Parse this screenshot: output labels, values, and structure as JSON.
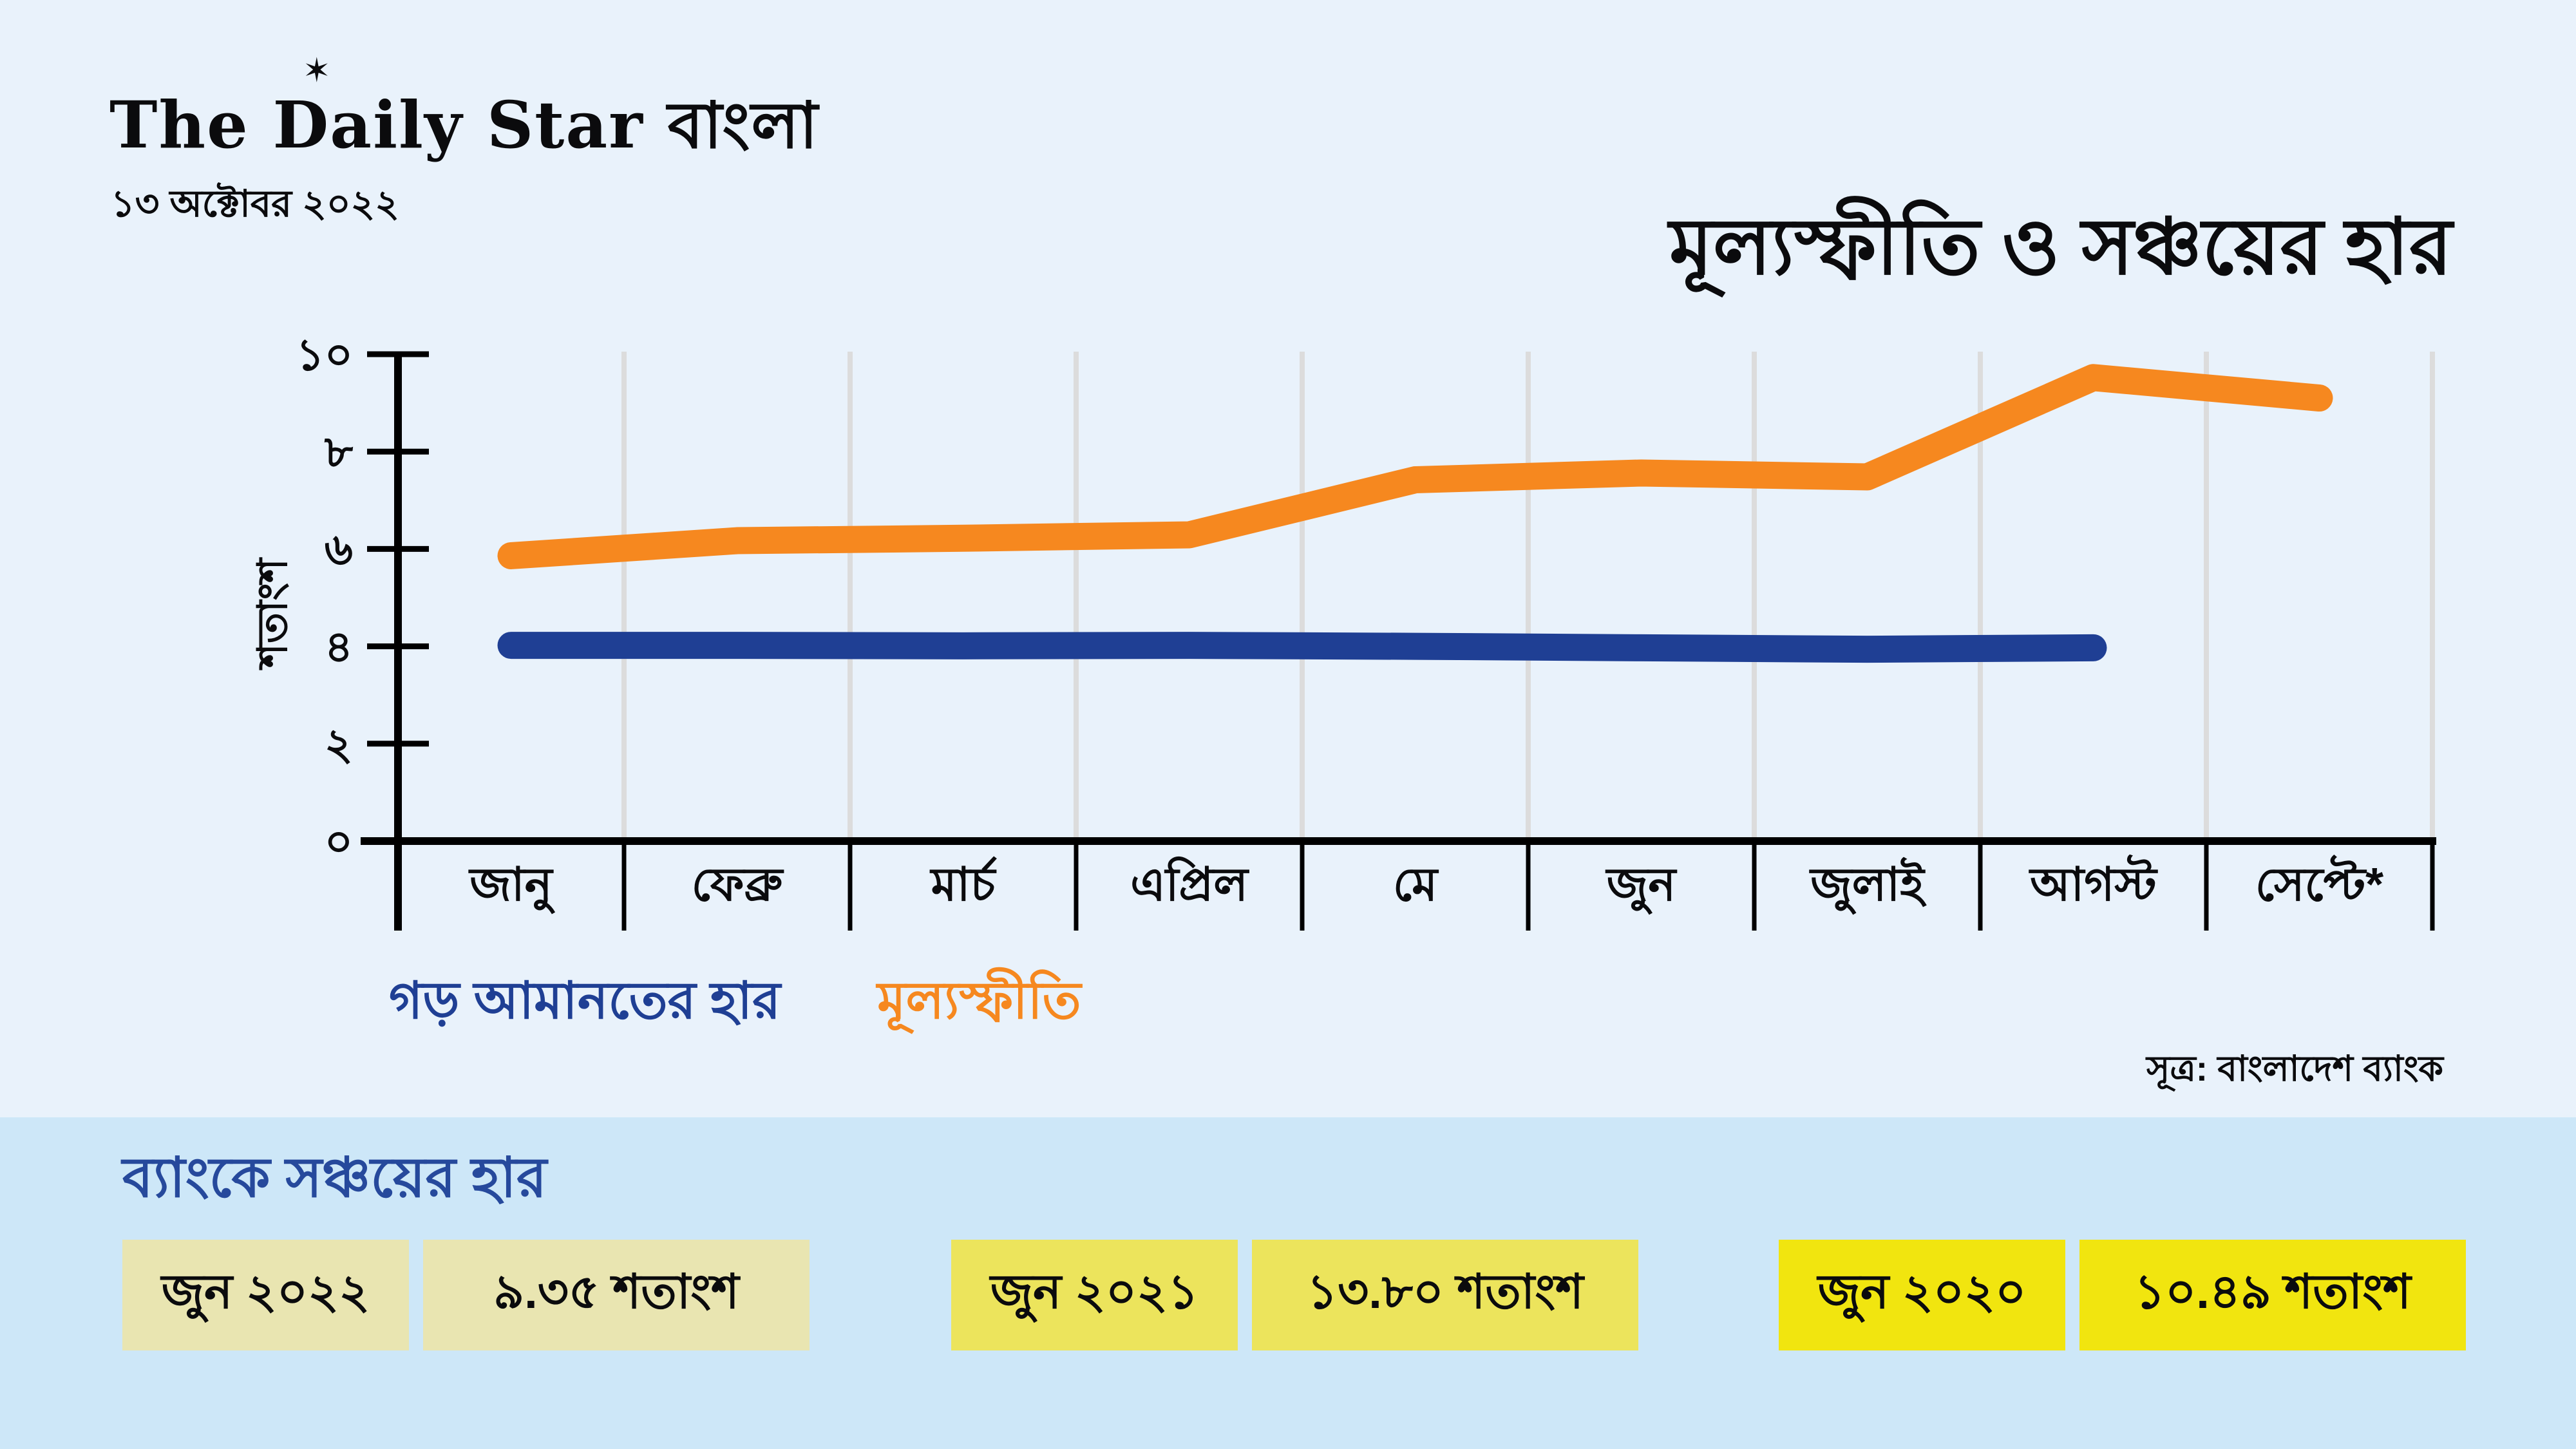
{
  "page": {
    "background": "#e9f2fb"
  },
  "header": {
    "logo": "The Daily Star",
    "logo_suffix": "বাংলা",
    "star_icon": "✶",
    "date": "১৩ অক্টোবর ২০২২",
    "title": "মূল্যস্ফীতি ও সঞ্চয়ের হার"
  },
  "chart_data": {
    "type": "line",
    "title": "মূল্যস্ফীতি ও সঞ্চয়ের হার",
    "categories": [
      "জানু",
      "ফেব্রু",
      "মার্চ",
      "এপ্রিল",
      "মে",
      "জুন",
      "জুলাই",
      "আগস্ট",
      "সেপ্টে*"
    ],
    "series": [
      {
        "name": "গড় আমানতের হার",
        "color": "#1f3f94",
        "values": [
          4.02,
          4.02,
          4.01,
          4.02,
          4.0,
          3.97,
          3.94,
          3.97,
          null
        ]
      },
      {
        "name": "মূল্যস্ফীতি",
        "color": "#f6881f",
        "values": [
          5.86,
          6.17,
          6.22,
          6.29,
          7.42,
          7.56,
          7.48,
          9.52,
          9.1
        ]
      }
    ],
    "xlabel": "",
    "ylabel": "শতাংশ",
    "ylim": [
      0,
      10
    ],
    "yticks": [
      {
        "value": 0,
        "label": "০"
      },
      {
        "value": 2,
        "label": "২"
      },
      {
        "value": 4,
        "label": "৪"
      },
      {
        "value": 6,
        "label": "৬"
      },
      {
        "value": 8,
        "label": "৮"
      },
      {
        "value": 10,
        "label": "১০"
      }
    ],
    "grid": "vertical-only",
    "gridline_color": "#dcdcdc",
    "axis_color": "#000000",
    "legend_position": "bottom-left"
  },
  "source": "সূত্র: বাংলাদেশ ব্যাংক",
  "savings_panel": {
    "heading": "ব্যাংকে সঞ্চয়ের হার",
    "background": "#cde7f8",
    "items": [
      {
        "period": "জুন ২০২২",
        "value": "৯.৩৫ শতাংশ",
        "color": "#e9e5b1"
      },
      {
        "period": "জুন ২০২১",
        "value": "১৩.৮০ শতাংশ",
        "color": "#ece45c"
      },
      {
        "period": "জুন ২০২০",
        "value": "১০.৪৯ শতাংশ",
        "color": "#f1e50f"
      }
    ]
  }
}
